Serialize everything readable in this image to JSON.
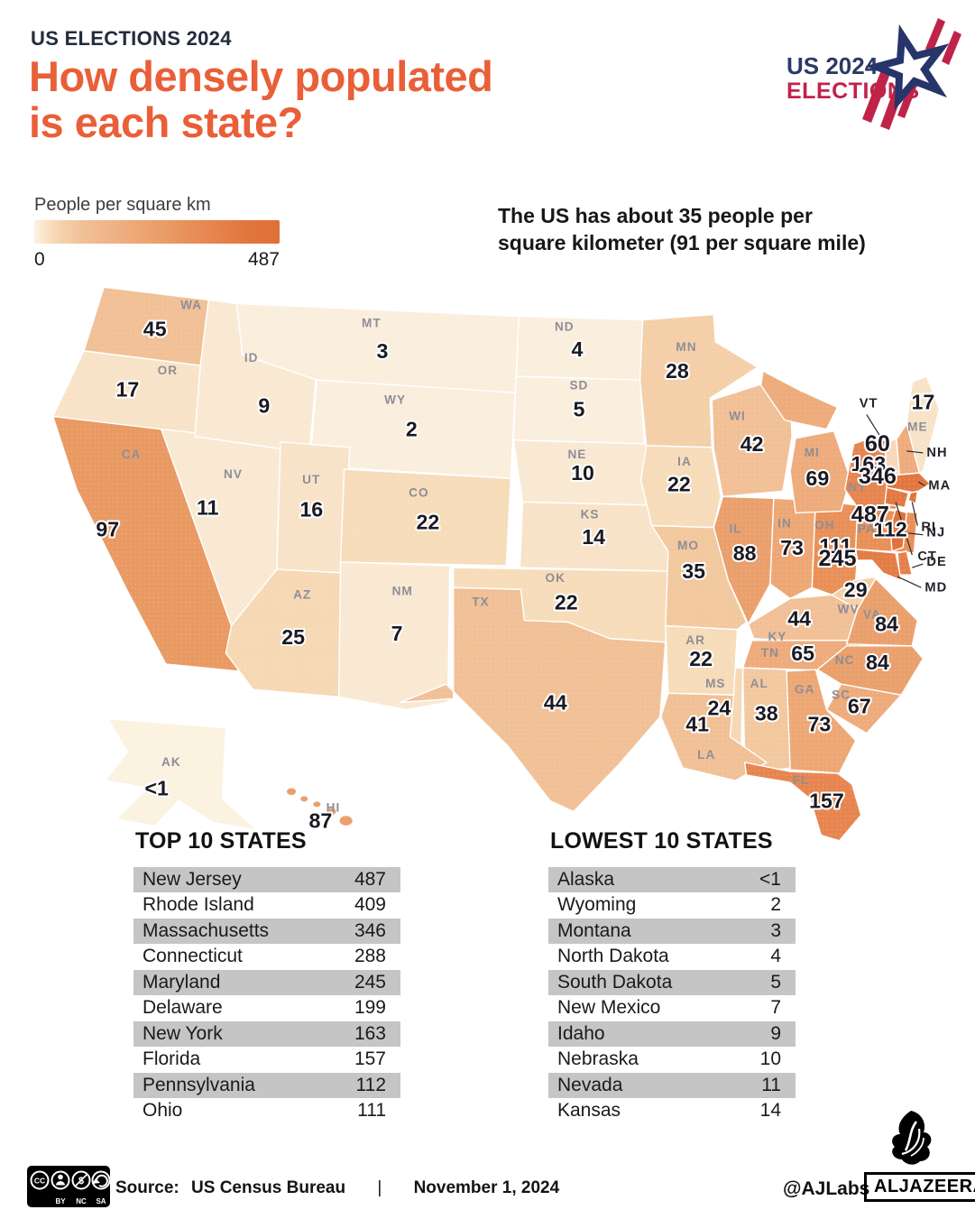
{
  "header": {
    "kicker": "US ELECTIONS 2024",
    "title_line1": "How densely populated",
    "title_line2": "is each state?"
  },
  "logo": {
    "line1": "US 2024",
    "line2": "ELECTIONS"
  },
  "legend": {
    "label": "People per square km",
    "min": "0",
    "max": "487"
  },
  "annotation": {
    "line1": "The US has about 35 people per",
    "line2": "square kilometer (91 per square mile)"
  },
  "chart_data": {
    "type": "choropleth_map",
    "region": "United States",
    "title": "How densely populated is each state?",
    "unit_label": "People per square km",
    "scale": {
      "min": 0,
      "max": 487
    },
    "annotation": "The US has about 35 people per square kilometer (91 per square mile)",
    "values": [
      {
        "abbr": "WA",
        "name": "Washington",
        "value": 45,
        "map_label": "45"
      },
      {
        "abbr": "OR",
        "name": "Oregon",
        "value": 17,
        "map_label": "17"
      },
      {
        "abbr": "CA",
        "name": "California",
        "value": 97,
        "map_label": "97"
      },
      {
        "abbr": "NV",
        "name": "Nevada",
        "value": 11,
        "map_label": "11"
      },
      {
        "abbr": "ID",
        "name": "Idaho",
        "value": 9,
        "map_label": "9"
      },
      {
        "abbr": "MT",
        "name": "Montana",
        "value": 3,
        "map_label": "3"
      },
      {
        "abbr": "WY",
        "name": "Wyoming",
        "value": 2,
        "map_label": "2"
      },
      {
        "abbr": "UT",
        "name": "Utah",
        "value": 16,
        "map_label": "16"
      },
      {
        "abbr": "CO",
        "name": "Colorado",
        "value": 22,
        "map_label": "22"
      },
      {
        "abbr": "AZ",
        "name": "Arizona",
        "value": 25,
        "map_label": "25"
      },
      {
        "abbr": "NM",
        "name": "New Mexico",
        "value": 7,
        "map_label": "7"
      },
      {
        "abbr": "ND",
        "name": "North Dakota",
        "value": 4,
        "map_label": "4"
      },
      {
        "abbr": "SD",
        "name": "South Dakota",
        "value": 5,
        "map_label": "5"
      },
      {
        "abbr": "NE",
        "name": "Nebraska",
        "value": 10,
        "map_label": "10"
      },
      {
        "abbr": "KS",
        "name": "Kansas",
        "value": 14,
        "map_label": "14"
      },
      {
        "abbr": "OK",
        "name": "Oklahoma",
        "value": 22,
        "map_label": "22"
      },
      {
        "abbr": "TX",
        "name": "Texas",
        "value": 44,
        "map_label": "44"
      },
      {
        "abbr": "MN",
        "name": "Minnesota",
        "value": 28,
        "map_label": "28"
      },
      {
        "abbr": "IA",
        "name": "Iowa",
        "value": 22,
        "map_label": "22"
      },
      {
        "abbr": "MO",
        "name": "Missouri",
        "value": 35,
        "map_label": "35"
      },
      {
        "abbr": "AR",
        "name": "Arkansas",
        "value": 22,
        "map_label": "22"
      },
      {
        "abbr": "LA",
        "name": "Louisiana",
        "value": 41,
        "map_label": "41"
      },
      {
        "abbr": "WI",
        "name": "Wisconsin",
        "value": 42,
        "map_label": "42"
      },
      {
        "abbr": "IL",
        "name": "Illinois",
        "value": 88,
        "map_label": "88"
      },
      {
        "abbr": "IN",
        "name": "Indiana",
        "value": 73,
        "map_label": "73"
      },
      {
        "abbr": "MI",
        "name": "Michigan",
        "value": 69,
        "map_label": "69"
      },
      {
        "abbr": "OH",
        "name": "Ohio",
        "value": 111,
        "map_label": "111"
      },
      {
        "abbr": "KY",
        "name": "Kentucky",
        "value": 44,
        "map_label": "44"
      },
      {
        "abbr": "TN",
        "name": "Tennessee",
        "value": 65,
        "map_label": "65"
      },
      {
        "abbr": "MS",
        "name": "Mississippi",
        "value": 24,
        "map_label": "24"
      },
      {
        "abbr": "AL",
        "name": "Alabama",
        "value": 38,
        "map_label": "38"
      },
      {
        "abbr": "GA",
        "name": "Georgia",
        "value": 73,
        "map_label": "73"
      },
      {
        "abbr": "FL",
        "name": "Florida",
        "value": 157,
        "map_label": "157"
      },
      {
        "abbr": "SC",
        "name": "South Carolina",
        "value": 67,
        "map_label": "67"
      },
      {
        "abbr": "NC",
        "name": "North Carolina",
        "value": 84,
        "map_label": "84"
      },
      {
        "abbr": "VA",
        "name": "Virginia",
        "value": 84,
        "map_label": "84"
      },
      {
        "abbr": "WV",
        "name": "West Virginia",
        "value": 29,
        "map_label": "29"
      },
      {
        "abbr": "PA",
        "name": "Pennsylvania",
        "value": 112,
        "map_label": "112"
      },
      {
        "abbr": "NY",
        "name": "New York",
        "value": 163,
        "map_label": "163"
      },
      {
        "abbr": "ME",
        "name": "Maine",
        "value": 17,
        "map_label": "17"
      },
      {
        "abbr": "VT",
        "name": "Vermont",
        "value": null,
        "map_label": ""
      },
      {
        "abbr": "NH",
        "name": "New Hampshire",
        "value": 60,
        "map_label": "60"
      },
      {
        "abbr": "MA",
        "name": "Massachusetts",
        "value": 346,
        "map_label": "346"
      },
      {
        "abbr": "RI",
        "name": "Rhode Island",
        "value": 409,
        "map_label": ""
      },
      {
        "abbr": "CT",
        "name": "Connecticut",
        "value": 288,
        "map_label": ""
      },
      {
        "abbr": "NJ",
        "name": "New Jersey",
        "value": 487,
        "map_label": "487"
      },
      {
        "abbr": "DE",
        "name": "Delaware",
        "value": 199,
        "map_label": ""
      },
      {
        "abbr": "MD",
        "name": "Maryland",
        "value": 245,
        "map_label": "245"
      },
      {
        "abbr": "AK",
        "name": "Alaska",
        "value": 0.5,
        "map_label": "<1"
      },
      {
        "abbr": "HI",
        "name": "Hawaii",
        "value": 87,
        "map_label": "87"
      }
    ],
    "top_10": [
      [
        "New Jersey",
        "487"
      ],
      [
        "Rhode Island",
        "409"
      ],
      [
        "Massachusetts",
        "346"
      ],
      [
        "Connecticut",
        "288"
      ],
      [
        "Maryland",
        "245"
      ],
      [
        "Delaware",
        "199"
      ],
      [
        "New York",
        "163"
      ],
      [
        "Florida",
        "157"
      ],
      [
        "Pennsylvania",
        "112"
      ],
      [
        "Ohio",
        "111"
      ]
    ],
    "lowest_10": [
      [
        "Alaska",
        "<1"
      ],
      [
        "Wyoming",
        "2"
      ],
      [
        "Montana",
        "3"
      ],
      [
        "North Dakota",
        "4"
      ],
      [
        "South Dakota",
        "5"
      ],
      [
        "New Mexico",
        "7"
      ],
      [
        "Idaho",
        "9"
      ],
      [
        "Nebraska",
        "10"
      ],
      [
        "Nevada",
        "11"
      ],
      [
        "Kansas",
        "14"
      ]
    ]
  },
  "tables": {
    "top_title": "TOP 10 STATES",
    "lowest_title": "LOWEST 10 STATES"
  },
  "footer": {
    "badge": [
      "CC",
      "BY",
      "NC",
      "SA"
    ],
    "source_label": "Source:",
    "source": "US Census Bureau",
    "separator": "|",
    "date": "November 1, 2024",
    "credit": "@AJLabs",
    "brand": "ALJAZEERA"
  },
  "colors": {
    "accent_orange": "#e95f38",
    "kicker_navy": "#232b3d",
    "logo_navy": "#2b3a66",
    "logo_crimson": "#c0234a",
    "row_shade": "#c5c5c5",
    "map_number": "#1a1a24",
    "map_abbr": "#8e8e96",
    "callout_label": "#23232b",
    "vt_fill": "#f6d8ba",
    "scale_stops": [
      {
        "max": 1,
        "color": "#fbf2e0"
      },
      {
        "max": 5,
        "color": "#faeedd"
      },
      {
        "max": 11,
        "color": "#f9e9d3"
      },
      {
        "max": 17,
        "color": "#f8e3c8"
      },
      {
        "max": 22,
        "color": "#f7dcba"
      },
      {
        "max": 26,
        "color": "#f6d8b4"
      },
      {
        "max": 31,
        "color": "#f4cfa8"
      },
      {
        "max": 39,
        "color": "#f2c89e"
      },
      {
        "max": 50,
        "color": "#f1c096"
      },
      {
        "max": 70,
        "color": "#eeab7c"
      },
      {
        "max": 79,
        "color": "#eda775"
      },
      {
        "max": 90,
        "color": "#eaa06c"
      },
      {
        "max": 105,
        "color": "#e99a63"
      },
      {
        "max": 130,
        "color": "#e99058"
      },
      {
        "max": 180,
        "color": "#e78550"
      },
      {
        "max": 220,
        "color": "#e5804a"
      },
      {
        "max": 260,
        "color": "#e37c45"
      },
      {
        "max": 310,
        "color": "#e27942"
      },
      {
        "max": 380,
        "color": "#e17740"
      },
      {
        "max": 440,
        "color": "#e0743c"
      },
      {
        "max": 100000,
        "color": "#df7038"
      }
    ]
  }
}
